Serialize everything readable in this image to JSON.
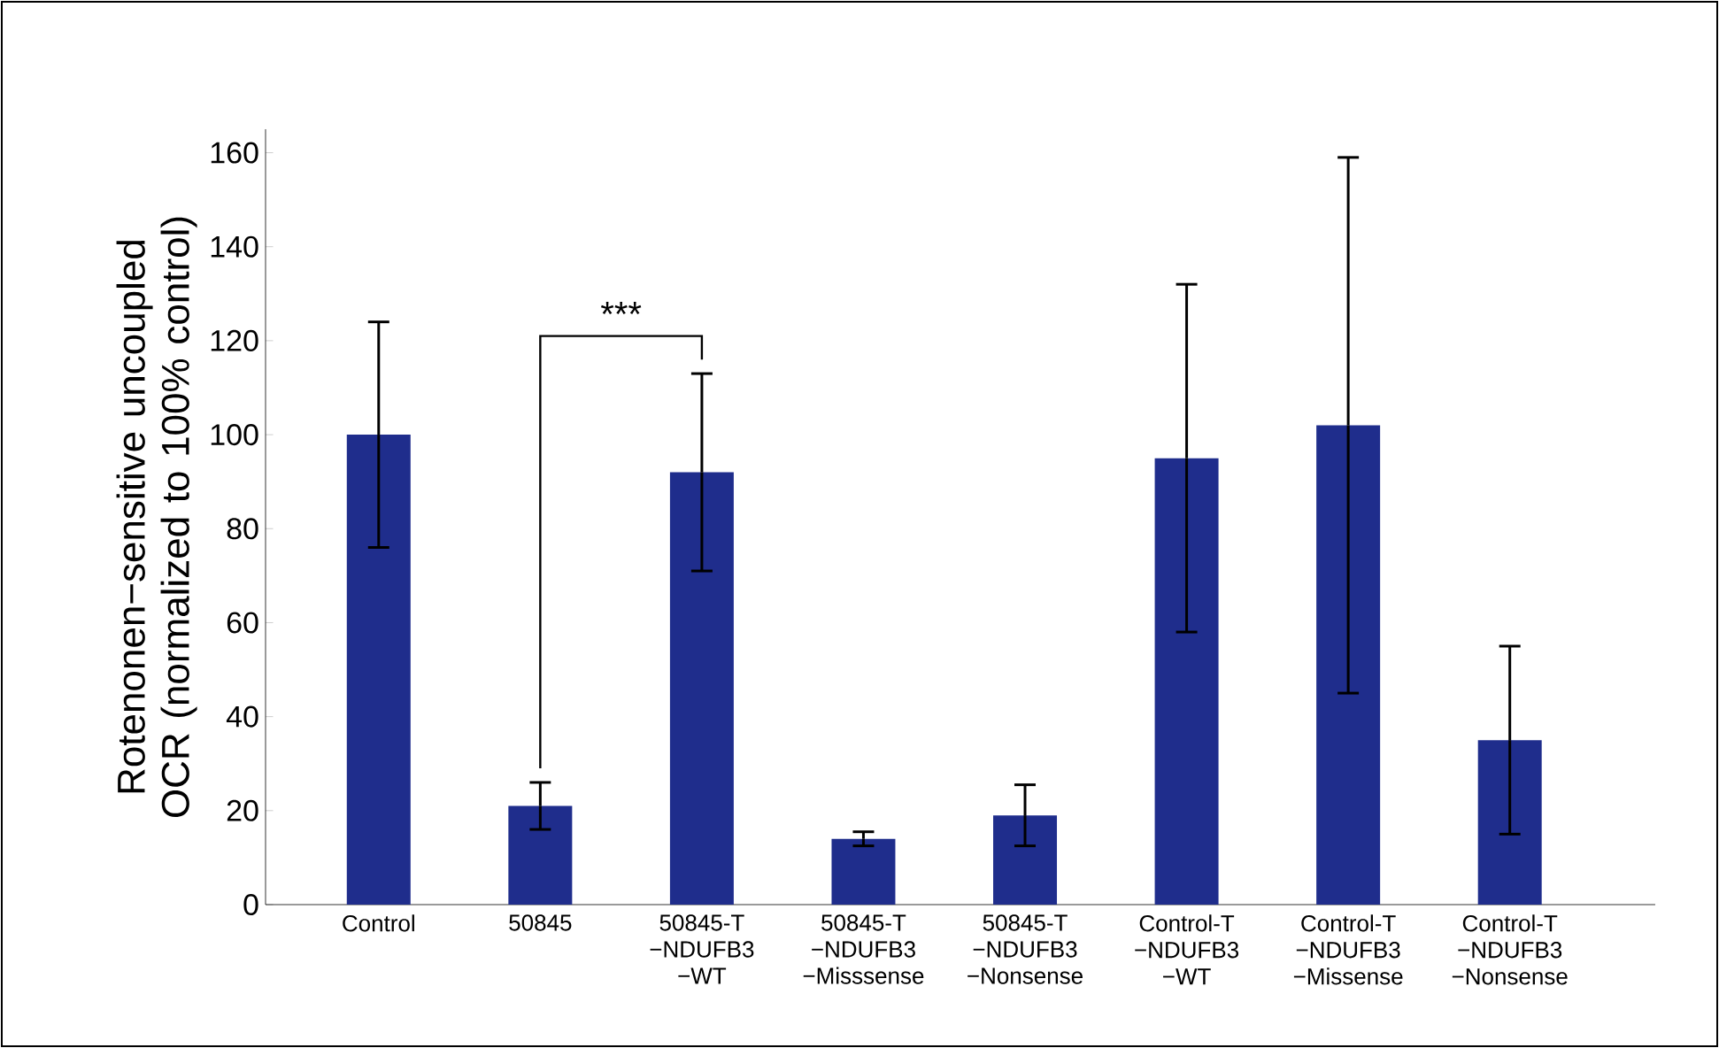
{
  "chart_data": {
    "type": "bar",
    "ylabel": "Rotenonen−sensitive uncoupled OCR (normalized to 100% control)",
    "categories": [
      "Control",
      "50845",
      "50845-T −NDUFB3 −WT",
      "50845-T −NDUFB3 −Misssense",
      "50845-T −NDUFB3 −Nonsense",
      "Control-T −NDUFB3 −WT",
      "Control-T −NDUFB3 −Missense",
      "Control-T −NDUFB3 −Nonsense"
    ],
    "values": [
      100,
      21,
      92,
      14,
      19,
      95,
      102,
      35
    ],
    "errors": [
      24,
      5,
      21,
      1.5,
      6.5,
      37,
      57,
      20
    ],
    "color": "#1f2d8c",
    "ylim": [
      0,
      165
    ],
    "yticks": [
      0,
      20,
      40,
      60,
      80,
      100,
      120,
      140,
      160
    ],
    "annotations": [
      "***"
    ]
  }
}
